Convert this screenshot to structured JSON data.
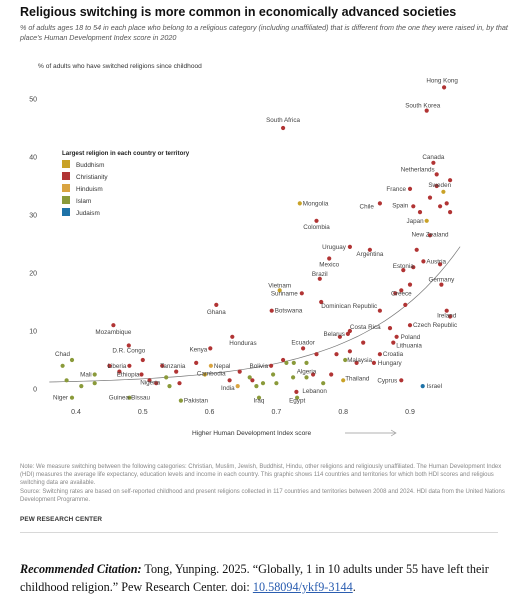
{
  "header": {
    "title": "Religious switching is more common in economically advanced societies",
    "subtitle": "% of adults ages 18 to 54 in each place who belong to a religious category (including unaffiliated) that is different from the one they were raised in, by that place's Human Development Index score in 2020"
  },
  "chart_data": {
    "type": "scatter",
    "ylabel": "% of adults who have switched religions since childhood",
    "xlabel": "Higher Human Development Index score",
    "xlim": [
      0.33,
      1.0
    ],
    "ylim": [
      0,
      55
    ],
    "xticks": [
      0.4,
      0.5,
      0.6,
      0.7,
      0.8,
      0.9
    ],
    "xtick_labels": [
      "0.4",
      "0.5",
      "0.6",
      "0.7",
      "0.8",
      "0.9"
    ],
    "yticks": [
      0,
      10,
      20,
      30,
      40,
      50
    ],
    "grid": false,
    "trendline": "exponential",
    "legend": {
      "title": "Largest religion in each country or territory",
      "placement": "upper-left",
      "entries": [
        {
          "key": "buddhism",
          "label": "Buddhism",
          "color": "#c9a227"
        },
        {
          "key": "christianity",
          "label": "Christianity",
          "color": "#b13434"
        },
        {
          "key": "hinduism",
          "label": "Hinduism",
          "color": "#d9a441"
        },
        {
          "key": "islam",
          "label": "Islam",
          "color": "#8a9a3a"
        },
        {
          "key": "judaism",
          "label": "Judaism",
          "color": "#1e73a8"
        }
      ]
    },
    "points": [
      {
        "label": "Hong Kong",
        "x": 0.951,
        "y": 52,
        "group": "christianity"
      },
      {
        "label": "South Korea",
        "x": 0.925,
        "y": 48,
        "group": "christianity"
      },
      {
        "label": "South Africa",
        "x": 0.71,
        "y": 45,
        "group": "christianity"
      },
      {
        "label": "Canada",
        "x": 0.935,
        "y": 39,
        "group": "christianity"
      },
      {
        "label": "Netherlands",
        "x": 0.94,
        "y": 37,
        "group": "christianity"
      },
      {
        "label": "Sweden",
        "x": 0.94,
        "y": 35,
        "group": "christianity"
      },
      {
        "label": "France",
        "x": 0.9,
        "y": 34.5,
        "group": "christianity"
      },
      {
        "label": "Mongolia",
        "x": 0.735,
        "y": 32,
        "group": "buddhism"
      },
      {
        "label": "Chile",
        "x": 0.855,
        "y": 32,
        "group": "christianity"
      },
      {
        "label": "Spain",
        "x": 0.905,
        "y": 31.5,
        "group": "christianity"
      },
      {
        "label": "Japan",
        "x": 0.925,
        "y": 29,
        "group": "buddhism"
      },
      {
        "label": "Colombia",
        "x": 0.76,
        "y": 29,
        "group": "christianity"
      },
      {
        "label": "New Zealand",
        "x": 0.93,
        "y": 26.5,
        "group": "christianity"
      },
      {
        "label": "Uruguay",
        "x": 0.81,
        "y": 24.5,
        "group": "christianity"
      },
      {
        "label": "Argentina",
        "x": 0.84,
        "y": 24,
        "group": "christianity"
      },
      {
        "label": "Mexico",
        "x": 0.779,
        "y": 22.5,
        "group": "christianity"
      },
      {
        "label": "Austria",
        "x": 0.92,
        "y": 22,
        "group": "christianity"
      },
      {
        "label": "Estonia",
        "x": 0.89,
        "y": 20.5,
        "group": "christianity"
      },
      {
        "label": "Brazil",
        "x": 0.765,
        "y": 19,
        "group": "christianity"
      },
      {
        "label": "Germany",
        "x": 0.947,
        "y": 18,
        "group": "christianity"
      },
      {
        "label": "Vietnam",
        "x": 0.705,
        "y": 17,
        "group": "buddhism"
      },
      {
        "label": "Greece",
        "x": 0.887,
        "y": 17,
        "group": "christianity"
      },
      {
        "label": "Suriname",
        "x": 0.738,
        "y": 16.5,
        "group": "christianity"
      },
      {
        "label": "Dominican Republic",
        "x": 0.767,
        "y": 15,
        "group": "christianity"
      },
      {
        "label": "Ghana",
        "x": 0.61,
        "y": 14.5,
        "group": "christianity"
      },
      {
        "label": "Botswana",
        "x": 0.693,
        "y": 13.5,
        "group": "christianity"
      },
      {
        "label": "Ireland",
        "x": 0.955,
        "y": 13.5,
        "group": "christianity"
      },
      {
        "label": "Czech Republic",
        "x": 0.9,
        "y": 11,
        "group": "christianity"
      },
      {
        "label": "Mozambique",
        "x": 0.456,
        "y": 11,
        "group": "christianity"
      },
      {
        "label": "Costa Rica",
        "x": 0.81,
        "y": 10,
        "group": "christianity"
      },
      {
        "label": "Belarus",
        "x": 0.807,
        "y": 9.5,
        "group": "christianity"
      },
      {
        "label": "Poland",
        "x": 0.88,
        "y": 9,
        "group": "christianity"
      },
      {
        "label": "Honduras",
        "x": 0.634,
        "y": 9,
        "group": "christianity"
      },
      {
        "label": "D.R. Congo",
        "x": 0.479,
        "y": 7.5,
        "group": "christianity"
      },
      {
        "label": "Lithuania",
        "x": 0.875,
        "y": 8,
        "group": "christianity"
      },
      {
        "label": "Kenya",
        "x": 0.601,
        "y": 7,
        "group": "christianity"
      },
      {
        "label": "Ecuador",
        "x": 0.74,
        "y": 7,
        "group": "christianity"
      },
      {
        "label": "Croatia",
        "x": 0.855,
        "y": 6,
        "group": "christianity"
      },
      {
        "label": "Chad",
        "x": 0.394,
        "y": 5,
        "group": "islam"
      },
      {
        "label": "Malaysia",
        "x": 0.803,
        "y": 5,
        "group": "islam"
      },
      {
        "label": "Hungary",
        "x": 0.846,
        "y": 4.5,
        "group": "christianity"
      },
      {
        "label": "Liberia",
        "x": 0.48,
        "y": 4,
        "group": "christianity"
      },
      {
        "label": "Tanzania",
        "x": 0.529,
        "y": 4,
        "group": "christianity"
      },
      {
        "label": "Nepal",
        "x": 0.602,
        "y": 4,
        "group": "hinduism"
      },
      {
        "label": "Bolivia",
        "x": 0.692,
        "y": 4,
        "group": "christianity"
      },
      {
        "label": "Mali",
        "x": 0.428,
        "y": 2.5,
        "group": "islam"
      },
      {
        "label": "Ethiopia",
        "x": 0.498,
        "y": 2.5,
        "group": "christianity"
      },
      {
        "label": "Cambodia",
        "x": 0.593,
        "y": 2.5,
        "group": "buddhism"
      },
      {
        "label": "Nigeria",
        "x": 0.535,
        "y": 2,
        "group": "islam"
      },
      {
        "label": "Algeria",
        "x": 0.745,
        "y": 2,
        "group": "islam"
      },
      {
        "label": "Thailand",
        "x": 0.8,
        "y": 1.5,
        "group": "buddhism"
      },
      {
        "label": "Cyprus",
        "x": 0.887,
        "y": 1.5,
        "group": "christianity"
      },
      {
        "label": "Israel",
        "x": 0.919,
        "y": 0.5,
        "group": "judaism"
      },
      {
        "label": "India",
        "x": 0.642,
        "y": 0.5,
        "group": "hinduism"
      },
      {
        "label": "Niger",
        "x": 0.394,
        "y": -1.5,
        "group": "islam"
      },
      {
        "label": "Guinea-Bissau",
        "x": 0.48,
        "y": -1.5,
        "group": "islam"
      },
      {
        "label": "Pakistan",
        "x": 0.557,
        "y": -2,
        "group": "islam"
      },
      {
        "label": "Iraq",
        "x": 0.674,
        "y": -1.5,
        "group": "islam"
      },
      {
        "label": "Egypt",
        "x": 0.731,
        "y": -1.5,
        "group": "islam"
      },
      {
        "label": "Lebanon",
        "x": 0.73,
        "y": -0.5,
        "group": "christianity"
      },
      {
        "x": 0.38,
        "y": 4,
        "group": "islam"
      },
      {
        "x": 0.386,
        "y": 1.5,
        "group": "islam"
      },
      {
        "x": 0.408,
        "y": 0.5,
        "group": "islam"
      },
      {
        "x": 0.428,
        "y": 1,
        "group": "islam"
      },
      {
        "x": 0.45,
        "y": 4,
        "group": "christianity"
      },
      {
        "x": 0.465,
        "y": 3,
        "group": "christianity"
      },
      {
        "x": 0.5,
        "y": 5,
        "group": "christianity"
      },
      {
        "x": 0.51,
        "y": 1.5,
        "group": "christianity"
      },
      {
        "x": 0.52,
        "y": 1,
        "group": "christianity"
      },
      {
        "x": 0.54,
        "y": 0.5,
        "group": "islam"
      },
      {
        "x": 0.55,
        "y": 3,
        "group": "christianity"
      },
      {
        "x": 0.555,
        "y": 1,
        "group": "christianity"
      },
      {
        "x": 0.58,
        "y": 4.5,
        "group": "christianity"
      },
      {
        "x": 0.63,
        "y": 1.5,
        "group": "christianity"
      },
      {
        "x": 0.645,
        "y": 3,
        "group": "christianity"
      },
      {
        "x": 0.66,
        "y": 2,
        "group": "islam"
      },
      {
        "x": 0.664,
        "y": 1.5,
        "group": "christianity"
      },
      {
        "x": 0.67,
        "y": 0.5,
        "group": "islam"
      },
      {
        "x": 0.68,
        "y": 1,
        "group": "islam"
      },
      {
        "x": 0.695,
        "y": 2.5,
        "group": "islam"
      },
      {
        "x": 0.7,
        "y": 1,
        "group": "islam"
      },
      {
        "x": 0.71,
        "y": 5,
        "group": "christianity"
      },
      {
        "x": 0.715,
        "y": 4.5,
        "group": "islam"
      },
      {
        "x": 0.726,
        "y": 4.5,
        "group": "islam"
      },
      {
        "x": 0.725,
        "y": 2,
        "group": "islam"
      },
      {
        "x": 0.745,
        "y": 4.5,
        "group": "islam"
      },
      {
        "x": 0.755,
        "y": 2.5,
        "group": "christianity"
      },
      {
        "x": 0.76,
        "y": 6,
        "group": "christianity"
      },
      {
        "x": 0.77,
        "y": 1,
        "group": "islam"
      },
      {
        "x": 0.782,
        "y": 2.5,
        "group": "christianity"
      },
      {
        "x": 0.79,
        "y": 6,
        "group": "christianity"
      },
      {
        "x": 0.795,
        "y": 9,
        "group": "christianity"
      },
      {
        "x": 0.81,
        "y": 6.5,
        "group": "christianity"
      },
      {
        "x": 0.82,
        "y": 4.5,
        "group": "christianity"
      },
      {
        "x": 0.83,
        "y": 8,
        "group": "christianity"
      },
      {
        "x": 0.855,
        "y": 13.5,
        "group": "christianity"
      },
      {
        "x": 0.87,
        "y": 10.5,
        "group": "christianity"
      },
      {
        "x": 0.878,
        "y": 16.5,
        "group": "christianity"
      },
      {
        "x": 0.893,
        "y": 14.5,
        "group": "christianity"
      },
      {
        "x": 0.9,
        "y": 18,
        "group": "christianity"
      },
      {
        "x": 0.905,
        "y": 21,
        "group": "christianity"
      },
      {
        "x": 0.91,
        "y": 24,
        "group": "christianity"
      },
      {
        "x": 0.915,
        "y": 30.5,
        "group": "christianity"
      },
      {
        "x": 0.93,
        "y": 33,
        "group": "christianity"
      },
      {
        "x": 0.945,
        "y": 31.5,
        "group": "christianity"
      },
      {
        "x": 0.95,
        "y": 34,
        "group": "buddhism"
      },
      {
        "x": 0.955,
        "y": 32,
        "group": "christianity"
      },
      {
        "x": 0.96,
        "y": 30.5,
        "group": "christianity"
      },
      {
        "x": 0.96,
        "y": 36,
        "group": "christianity"
      },
      {
        "x": 0.96,
        "y": 12.5,
        "group": "christianity"
      },
      {
        "x": 0.945,
        "y": 21.5,
        "group": "christianity"
      }
    ]
  },
  "notes": {
    "note": "Note: We measure switching between the following categories: Christian, Muslim, Jewish, Buddhist, Hindu, other religions and religiously unaffiliated. The Human Development Index (HDI) measures the average life expectancy, education levels and income in each country. This graphic shows 114 countries and territories for which both HDI scores and religious switching data are available.",
    "source": "Source: Switching rates are based on self-reported childhood and present religions collected in 117 countries and territories between 2008 and 2024. HDI data from the United Nations Development Programme.",
    "org": "PEW RESEARCH CENTER"
  },
  "citation": {
    "lead": "Recommended Citation:",
    "text": " Tong, Yunping. 2025. “Globally, 1 in 10 adults under 55 have left their childhood religion.” Pew Research Center. doi: ",
    "doi": "10.58094/ykf9-3144",
    "end": "."
  }
}
